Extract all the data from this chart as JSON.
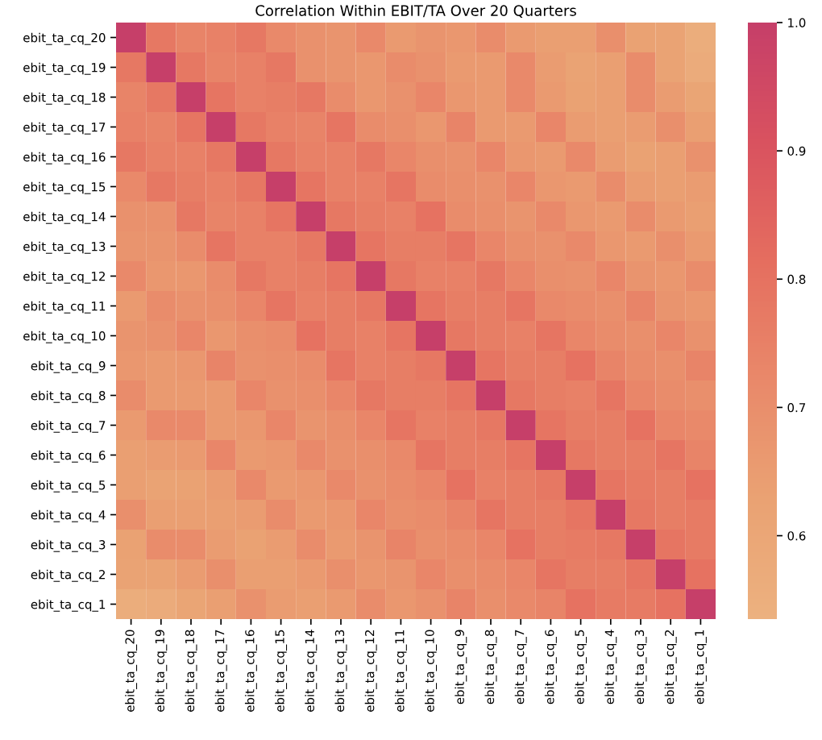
{
  "chart_data": {
    "type": "heatmap",
    "title": "Correlation Within EBIT/TA Over 20 Quarters",
    "categories": [
      "ebit_ta_cq_20",
      "ebit_ta_cq_19",
      "ebit_ta_cq_18",
      "ebit_ta_cq_17",
      "ebit_ta_cq_16",
      "ebit_ta_cq_15",
      "ebit_ta_cq_14",
      "ebit_ta_cq_13",
      "ebit_ta_cq_12",
      "ebit_ta_cq_11",
      "ebit_ta_cq_10",
      "ebit_ta_cq_9",
      "ebit_ta_cq_8",
      "ebit_ta_cq_7",
      "ebit_ta_cq_6",
      "ebit_ta_cq_5",
      "ebit_ta_cq_4",
      "ebit_ta_cq_3",
      "ebit_ta_cq_2",
      "ebit_ta_cq_1"
    ],
    "y_categories": [
      "ebit_ta_cq_20",
      "ebit_ta_cq_19",
      "ebit_ta_cq_18",
      "ebit_ta_cq_17",
      "ebit_ta_cq_16",
      "ebit_ta_cq_15",
      "ebit_ta_cq_14",
      "ebit_ta_cq_13",
      "ebit_ta_cq_12",
      "ebit_ta_cq_11",
      "ebit_ta_cq_10",
      "ebit_ta_cq_9",
      "ebit_ta_cq_8",
      "ebit_ta_cq_7",
      "ebit_ta_cq_6",
      "ebit_ta_cq_5",
      "ebit_ta_cq_4",
      "ebit_ta_cq_3",
      "ebit_ta_cq_2",
      "ebit_ta_cq_1"
    ],
    "cells": [
      [
        1,
        0.78,
        0.74,
        0.75,
        0.78,
        0.72,
        0.69,
        0.68,
        0.72,
        0.66,
        0.68,
        0.67,
        0.71,
        0.66,
        0.64,
        0.64,
        0.7,
        0.63,
        0.62,
        0.56
      ],
      [
        0.78,
        1,
        0.78,
        0.74,
        0.75,
        0.78,
        0.69,
        0.68,
        0.67,
        0.71,
        0.69,
        0.66,
        0.66,
        0.72,
        0.65,
        0.62,
        0.64,
        0.71,
        0.62,
        0.57
      ],
      [
        0.74,
        0.78,
        1,
        0.79,
        0.75,
        0.76,
        0.78,
        0.71,
        0.67,
        0.69,
        0.73,
        0.67,
        0.66,
        0.72,
        0.66,
        0.63,
        0.64,
        0.71,
        0.65,
        0.61
      ],
      [
        0.75,
        0.74,
        0.79,
        1,
        0.78,
        0.75,
        0.74,
        0.79,
        0.71,
        0.7,
        0.67,
        0.74,
        0.66,
        0.66,
        0.73,
        0.65,
        0.64,
        0.65,
        0.7,
        0.64
      ],
      [
        0.78,
        0.75,
        0.75,
        0.78,
        1,
        0.78,
        0.75,
        0.75,
        0.78,
        0.73,
        0.7,
        0.69,
        0.73,
        0.67,
        0.66,
        0.72,
        0.65,
        0.63,
        0.64,
        0.69
      ],
      [
        0.72,
        0.78,
        0.76,
        0.75,
        0.78,
        1,
        0.79,
        0.75,
        0.75,
        0.79,
        0.71,
        0.7,
        0.69,
        0.73,
        0.67,
        0.66,
        0.71,
        0.65,
        0.64,
        0.65
      ],
      [
        0.69,
        0.69,
        0.78,
        0.74,
        0.75,
        0.79,
        1,
        0.78,
        0.76,
        0.75,
        0.8,
        0.71,
        0.7,
        0.68,
        0.72,
        0.67,
        0.66,
        0.71,
        0.66,
        0.64
      ],
      [
        0.68,
        0.68,
        0.71,
        0.79,
        0.75,
        0.75,
        0.78,
        1,
        0.79,
        0.76,
        0.76,
        0.79,
        0.73,
        0.7,
        0.69,
        0.72,
        0.67,
        0.66,
        0.7,
        0.66
      ],
      [
        0.72,
        0.67,
        0.67,
        0.71,
        0.78,
        0.75,
        0.76,
        0.79,
        1,
        0.78,
        0.75,
        0.75,
        0.78,
        0.73,
        0.7,
        0.69,
        0.73,
        0.68,
        0.67,
        0.71
      ],
      [
        0.66,
        0.71,
        0.69,
        0.7,
        0.73,
        0.79,
        0.75,
        0.76,
        0.78,
        1,
        0.79,
        0.76,
        0.76,
        0.79,
        0.72,
        0.71,
        0.7,
        0.74,
        0.68,
        0.67
      ],
      [
        0.68,
        0.69,
        0.73,
        0.67,
        0.7,
        0.71,
        0.8,
        0.76,
        0.75,
        0.79,
        1,
        0.78,
        0.76,
        0.75,
        0.79,
        0.73,
        0.71,
        0.7,
        0.73,
        0.69
      ],
      [
        0.67,
        0.66,
        0.67,
        0.74,
        0.69,
        0.7,
        0.71,
        0.79,
        0.75,
        0.76,
        0.78,
        1,
        0.79,
        0.76,
        0.76,
        0.8,
        0.74,
        0.71,
        0.7,
        0.74
      ],
      [
        0.71,
        0.66,
        0.66,
        0.66,
        0.73,
        0.69,
        0.7,
        0.73,
        0.78,
        0.76,
        0.76,
        0.79,
        1,
        0.78,
        0.76,
        0.75,
        0.79,
        0.73,
        0.71,
        0.7
      ],
      [
        0.66,
        0.72,
        0.72,
        0.66,
        0.67,
        0.73,
        0.68,
        0.7,
        0.73,
        0.79,
        0.75,
        0.76,
        0.78,
        1,
        0.79,
        0.76,
        0.76,
        0.8,
        0.73,
        0.72
      ],
      [
        0.64,
        0.65,
        0.66,
        0.73,
        0.66,
        0.67,
        0.72,
        0.69,
        0.7,
        0.72,
        0.79,
        0.76,
        0.76,
        0.79,
        1,
        0.78,
        0.76,
        0.76,
        0.79,
        0.74
      ],
      [
        0.64,
        0.62,
        0.63,
        0.65,
        0.72,
        0.66,
        0.67,
        0.72,
        0.69,
        0.71,
        0.73,
        0.8,
        0.75,
        0.76,
        0.78,
        1,
        0.79,
        0.77,
        0.76,
        0.8
      ],
      [
        0.7,
        0.64,
        0.64,
        0.64,
        0.65,
        0.71,
        0.66,
        0.67,
        0.73,
        0.7,
        0.71,
        0.74,
        0.79,
        0.76,
        0.76,
        0.79,
        1,
        0.78,
        0.76,
        0.77
      ],
      [
        0.63,
        0.71,
        0.71,
        0.65,
        0.63,
        0.65,
        0.71,
        0.66,
        0.68,
        0.74,
        0.7,
        0.71,
        0.73,
        0.8,
        0.76,
        0.77,
        0.78,
        1,
        0.79,
        0.77
      ],
      [
        0.62,
        0.62,
        0.65,
        0.7,
        0.64,
        0.64,
        0.66,
        0.7,
        0.67,
        0.68,
        0.73,
        0.7,
        0.71,
        0.73,
        0.79,
        0.76,
        0.76,
        0.79,
        1,
        0.8
      ],
      [
        0.56,
        0.57,
        0.61,
        0.64,
        0.69,
        0.65,
        0.64,
        0.66,
        0.71,
        0.67,
        0.69,
        0.74,
        0.7,
        0.72,
        0.74,
        0.8,
        0.77,
        0.77,
        0.8,
        1
      ]
    ],
    "clim": [
      0.535,
      1.0
    ],
    "cticks": [
      0.6,
      0.7,
      0.8,
      0.9,
      {
        "value": 1,
        "label": "1.0"
      }
    ]
  }
}
